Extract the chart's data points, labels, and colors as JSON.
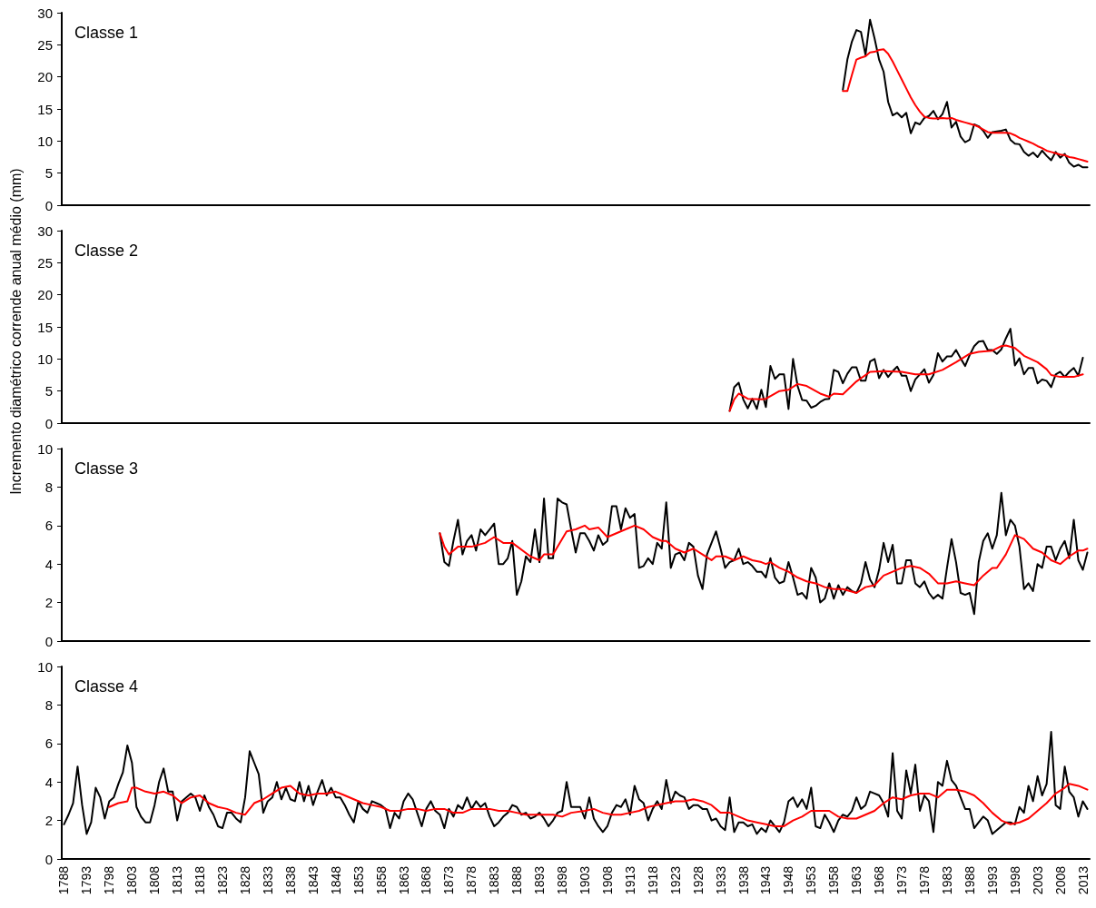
{
  "chart_data": [
    {
      "type": "line",
      "title": "Classe 1",
      "tick_labels": "y",
      "marker": "none",
      "xlim": [
        1787.5,
        2014.5
      ],
      "xticks": [
        1788,
        1793,
        1798,
        1803,
        1808,
        1813,
        1818,
        1823,
        1828,
        1833,
        1838,
        1843,
        1848,
        1853,
        1858,
        1863,
        1868,
        1873,
        1878,
        1883,
        1888,
        1893,
        1898,
        1903,
        1908,
        1913,
        1918,
        1923,
        1928,
        1933,
        1938,
        1943,
        1948,
        1953,
        1958,
        1963,
        1968,
        1973,
        1978,
        1983,
        1988,
        1993,
        1998,
        2003,
        2008,
        2013
      ],
      "ylim": [
        0,
        30
      ],
      "yticks": [
        0,
        5,
        10,
        15,
        20,
        25,
        30
      ],
      "series": [
        {
          "color": "#000000",
          "x": [
            1960,
            1961,
            1962,
            1963,
            1964,
            1965,
            1966,
            1967,
            1968,
            1969,
            1970,
            1971,
            1972,
            1973,
            1974,
            1975,
            1976,
            1977,
            1978,
            1979,
            1980,
            1981,
            1982,
            1983,
            1984,
            1985,
            1986,
            1987,
            1988,
            1989,
            1990,
            1991,
            1992,
            1993,
            1994,
            1995,
            1996,
            1997,
            1998,
            1999,
            2000,
            2001,
            2002,
            2003,
            2004,
            2005,
            2006,
            2007,
            2008,
            2009,
            2010,
            2011,
            2012,
            2013,
            2014
          ],
          "values": [
            18.0,
            22.7,
            25.5,
            27.3,
            27.0,
            23.4,
            28.9,
            26.0,
            22.7,
            20.8,
            16.1,
            14.0,
            14.4,
            13.7,
            14.4,
            11.2,
            12.9,
            12.6,
            13.6,
            13.9,
            14.7,
            13.4,
            14.2,
            16.1,
            12.1,
            13.0,
            10.7,
            9.8,
            10.2,
            12.6,
            12.3,
            11.6,
            10.5,
            11.4,
            11.5,
            11.6,
            11.8,
            10.2,
            9.6,
            9.5,
            8.3,
            7.7,
            8.2,
            7.5,
            8.5,
            7.7,
            7.0,
            8.3,
            7.4,
            8.0,
            6.6,
            6.0,
            6.3,
            5.9,
            5.9
          ]
        },
        {
          "color": "#ff0000",
          "x": [
            1960,
            1961,
            1962,
            1963,
            1964,
            1965,
            1966,
            1967,
            1968,
            1969,
            1970,
            1971,
            1972,
            1973,
            1974,
            1975,
            1976,
            1977,
            1978,
            1979,
            1980,
            1981,
            1982,
            1983,
            1984,
            1985,
            1986,
            1987,
            1988,
            1989,
            1990,
            1991,
            1992,
            1993,
            1994,
            1995,
            1996,
            1997,
            1998,
            1999,
            2000,
            2001,
            2002,
            2003,
            2004,
            2005,
            2006,
            2007,
            2008,
            2009,
            2010,
            2011,
            2012,
            2013,
            2014
          ],
          "values": [
            17.8,
            17.8,
            20.3,
            22.7,
            23.0,
            23.2,
            23.8,
            23.9,
            24.2,
            24.3,
            23.6,
            22.4,
            21.0,
            19.6,
            18.2,
            16.8,
            15.6,
            14.6,
            13.8,
            13.6,
            13.5,
            13.5,
            13.6,
            13.5,
            13.6,
            13.3,
            13.1,
            12.9,
            12.7,
            12.5,
            12.2,
            11.8,
            11.4,
            11.3,
            11.3,
            11.3,
            11.3,
            11.2,
            10.9,
            10.5,
            10.2,
            9.9,
            9.6,
            9.2,
            8.9,
            8.5,
            8.3,
            8.1,
            7.9,
            7.8,
            7.5,
            7.4,
            7.2,
            7.0,
            6.8
          ]
        }
      ]
    },
    {
      "type": "line",
      "title": "Classe 2",
      "ylabel": "Incremento diamétrico corrende anual médio (mm)",
      "tick_labels": "y",
      "marker": "none",
      "xlim": [
        1787.5,
        2014.5
      ],
      "xticks": [
        1788,
        1793,
        1798,
        1803,
        1808,
        1813,
        1818,
        1823,
        1828,
        1833,
        1838,
        1843,
        1848,
        1853,
        1858,
        1863,
        1868,
        1873,
        1878,
        1883,
        1888,
        1893,
        1898,
        1903,
        1908,
        1913,
        1918,
        1923,
        1928,
        1933,
        1938,
        1943,
        1948,
        1953,
        1958,
        1963,
        1968,
        1973,
        1978,
        1983,
        1988,
        1993,
        1998,
        2003,
        2008,
        2013
      ],
      "ylim": [
        0,
        30
      ],
      "yticks": [
        0,
        5,
        10,
        15,
        20,
        25,
        30
      ],
      "series": [
        {
          "color": "#000000",
          "x": [
            1935,
            1936,
            1937,
            1938,
            1939,
            1940,
            1941,
            1942,
            1943,
            1944,
            1945,
            1946,
            1947,
            1948,
            1949,
            1950,
            1951,
            1952,
            1953,
            1954,
            1955,
            1956,
            1957,
            1958,
            1959,
            1960,
            1961,
            1962,
            1963,
            1964,
            1965,
            1966,
            1967,
            1968,
            1969,
            1970,
            1971,
            1972,
            1973,
            1974,
            1975,
            1976,
            1977,
            1978,
            1979,
            1980,
            1981,
            1982,
            1983,
            1984,
            1985,
            1986,
            1987,
            1988,
            1989,
            1990,
            1991,
            1992,
            1993,
            1994,
            1995,
            1996,
            1997,
            1998,
            1999,
            2000,
            2001,
            2002,
            2003,
            2004,
            2005,
            2006,
            2007,
            2008,
            2009,
            2010,
            2011,
            2012,
            2013
          ],
          "values": [
            1.9,
            5.6,
            6.3,
            3.7,
            2.3,
            3.8,
            2.2,
            5.2,
            2.5,
            8.9,
            6.9,
            7.6,
            7.6,
            2.2,
            10.0,
            5.8,
            3.6,
            3.5,
            2.4,
            2.7,
            3.3,
            3.7,
            3.8,
            8.3,
            8.0,
            6.2,
            7.7,
            8.7,
            8.7,
            6.6,
            6.6,
            9.6,
            10.0,
            7.0,
            8.3,
            7.2,
            8.1,
            8.8,
            7.4,
            7.4,
            5.0,
            6.8,
            7.6,
            8.4,
            6.3,
            7.5,
            10.9,
            9.6,
            10.4,
            10.4,
            11.4,
            10.1,
            8.9,
            10.6,
            12.0,
            12.7,
            12.8,
            11.4,
            11.4,
            10.8,
            11.5,
            13.2,
            14.7,
            9.0,
            10.1,
            7.6,
            8.6,
            8.6,
            6.2,
            6.8,
            6.6,
            5.6,
            7.6,
            8.0,
            7.2,
            8.0,
            8.6,
            7.4,
            10.2
          ]
        },
        {
          "color": "#ff0000",
          "x": [
            1935,
            1936,
            1937,
            1939,
            1942,
            1943,
            1946,
            1948,
            1950,
            1952,
            1955,
            1957,
            1958,
            1960,
            1963,
            1966,
            1969,
            1973,
            1976,
            1979,
            1982,
            1985,
            1988,
            1990,
            1993,
            1995,
            1996,
            1998,
            2000,
            2003,
            2005,
            2006,
            2008,
            2011,
            2013
          ],
          "values": [
            1.9,
            3.7,
            4.6,
            3.8,
            3.7,
            3.8,
            5.0,
            5.2,
            6.1,
            5.8,
            4.6,
            4.1,
            4.6,
            4.5,
            6.5,
            8.0,
            8.1,
            8.0,
            7.6,
            7.6,
            8.3,
            9.5,
            10.8,
            11.1,
            11.3,
            12.0,
            12.1,
            11.7,
            10.5,
            9.5,
            8.4,
            7.5,
            7.2,
            7.2,
            7.6
          ]
        }
      ]
    },
    {
      "type": "line",
      "title": "Classe 3",
      "tick_labels": "y",
      "marker": "none",
      "xlim": [
        1787.5,
        2014.5
      ],
      "xticks": [
        1788,
        1793,
        1798,
        1803,
        1808,
        1813,
        1818,
        1823,
        1828,
        1833,
        1838,
        1843,
        1848,
        1853,
        1858,
        1863,
        1868,
        1873,
        1878,
        1883,
        1888,
        1893,
        1898,
        1903,
        1908,
        1913,
        1918,
        1923,
        1928,
        1933,
        1938,
        1943,
        1948,
        1953,
        1958,
        1963,
        1968,
        1973,
        1978,
        1983,
        1988,
        1993,
        1998,
        2003,
        2008,
        2013
      ],
      "ylim": [
        0,
        10
      ],
      "yticks": [
        0,
        2,
        4,
        6,
        8,
        10
      ],
      "series": [
        {
          "color": "#000000",
          "x": [
            1871,
            1872,
            1873,
            1874,
            1875,
            1876,
            1877,
            1878,
            1879,
            1880,
            1881,
            1882,
            1883,
            1884,
            1885,
            1886,
            1887,
            1888,
            1889,
            1890,
            1891,
            1892,
            1893,
            1894,
            1895,
            1896,
            1897,
            1898,
            1899,
            1900,
            1901,
            1902,
            1903,
            1904,
            1905,
            1906,
            1907,
            1908,
            1909,
            1910,
            1911,
            1912,
            1913,
            1914,
            1915,
            1916,
            1917,
            1918,
            1919,
            1920,
            1921,
            1922,
            1923,
            1924,
            1925,
            1926,
            1927,
            1928,
            1929,
            1930,
            1931,
            1932,
            1933,
            1934,
            1935,
            1936,
            1937,
            1938,
            1939,
            1940,
            1941,
            1942,
            1943,
            1944,
            1945,
            1946,
            1947,
            1948,
            1949,
            1950,
            1951,
            1952,
            1953,
            1954,
            1955,
            1956,
            1957,
            1958,
            1959,
            1960,
            1961,
            1962,
            1963,
            1964,
            1965,
            1966,
            1967,
            1968,
            1969,
            1970,
            1971,
            1972,
            1973,
            1974,
            1975,
            1976,
            1977,
            1978,
            1979,
            1980,
            1981,
            1982,
            1983,
            1984,
            1985,
            1986,
            1987,
            1988,
            1989,
            1990,
            1991,
            1992,
            1993,
            1994,
            1995,
            1996,
            1997,
            1998,
            1999,
            2000,
            2001,
            2002,
            2003,
            2004,
            2005,
            2006,
            2007,
            2008,
            2009,
            2010,
            2011,
            2012,
            2013,
            2014
          ],
          "values": [
            5.6,
            4.1,
            3.9,
            5.2,
            6.3,
            4.5,
            5.2,
            5.5,
            4.7,
            5.8,
            5.5,
            5.8,
            6.1,
            4.0,
            4.0,
            4.3,
            5.2,
            2.4,
            3.1,
            4.4,
            4.1,
            5.8,
            4.1,
            7.4,
            4.3,
            4.3,
            7.4,
            7.2,
            7.1,
            5.8,
            4.6,
            5.6,
            5.6,
            5.2,
            4.7,
            5.5,
            5.0,
            5.2,
            7.0,
            7.0,
            5.8,
            6.9,
            6.4,
            6.6,
            3.8,
            3.9,
            4.3,
            4.0,
            5.1,
            4.8,
            7.2,
            3.8,
            4.5,
            4.6,
            4.2,
            5.1,
            4.9,
            3.4,
            2.7,
            4.5,
            5.1,
            5.7,
            4.8,
            3.8,
            4.1,
            4.2,
            4.8,
            4.0,
            4.1,
            3.9,
            3.6,
            3.6,
            3.3,
            4.3,
            3.3,
            3.0,
            3.1,
            4.1,
            3.3,
            2.4,
            2.5,
            2.2,
            3.8,
            3.3,
            2.0,
            2.2,
            3.0,
            2.2,
            2.9,
            2.4,
            2.8,
            2.6,
            2.5,
            3.0,
            4.1,
            3.2,
            2.8,
            3.7,
            5.1,
            4.1,
            5.0,
            3.0,
            3.0,
            4.2,
            4.2,
            3.0,
            2.8,
            3.1,
            2.5,
            2.2,
            2.4,
            2.2,
            3.8,
            5.3,
            4.1,
            2.5,
            2.4,
            2.5,
            1.4,
            4.1,
            5.2,
            5.6,
            4.8,
            5.5,
            7.7,
            5.5,
            6.3,
            6.0,
            4.9,
            2.7,
            3.0,
            2.6,
            4.0,
            3.8,
            4.9,
            4.9,
            4.2,
            4.8,
            5.2,
            4.3,
            6.3,
            4.2,
            3.7,
            4.6
          ]
        },
        {
          "color": "#ff0000",
          "x": [
            1871,
            1872,
            1873,
            1875,
            1878,
            1881,
            1883,
            1885,
            1887,
            1891,
            1893,
            1894,
            1896,
            1899,
            1901,
            1903,
            1904,
            1906,
            1908,
            1910,
            1912,
            1914,
            1916,
            1918,
            1920,
            1921,
            1923,
            1925,
            1927,
            1929,
            1931,
            1932,
            1934,
            1936,
            1938,
            1940,
            1942,
            1943,
            1944,
            1946,
            1948,
            1950,
            1952,
            1954,
            1956,
            1958,
            1960,
            1963,
            1965,
            1967,
            1969,
            1971,
            1973,
            1975,
            1977,
            1979,
            1981,
            1983,
            1985,
            1987,
            1989,
            1991,
            1993,
            1994,
            1996,
            1998,
            2000,
            2002,
            2004,
            2006,
            2008,
            2010,
            2012,
            2013,
            2014
          ],
          "values": [
            5.6,
            4.9,
            4.5,
            4.9,
            4.9,
            5.1,
            5.4,
            5.1,
            5.1,
            4.4,
            4.2,
            4.5,
            4.5,
            5.7,
            5.8,
            6.0,
            5.8,
            5.9,
            5.4,
            5.6,
            5.8,
            6.0,
            5.8,
            5.4,
            5.2,
            5.2,
            4.8,
            4.6,
            4.8,
            4.5,
            4.2,
            4.4,
            4.4,
            4.2,
            4.4,
            4.2,
            4.1,
            4.0,
            4.1,
            3.8,
            3.6,
            3.3,
            3.1,
            3.0,
            2.8,
            2.7,
            2.7,
            2.5,
            2.8,
            2.9,
            3.4,
            3.6,
            3.8,
            3.9,
            3.8,
            3.5,
            3.0,
            3.0,
            3.1,
            3.0,
            2.9,
            3.4,
            3.8,
            3.8,
            4.5,
            5.5,
            5.3,
            4.8,
            4.6,
            4.2,
            4.0,
            4.4,
            4.7,
            4.7,
            4.8
          ]
        }
      ]
    },
    {
      "type": "line",
      "title": "Classe 4",
      "marker": "none",
      "xlim": [
        1787.5,
        2014.5
      ],
      "xticks": [
        1788,
        1793,
        1798,
        1803,
        1808,
        1813,
        1818,
        1823,
        1828,
        1833,
        1838,
        1843,
        1848,
        1853,
        1858,
        1863,
        1868,
        1873,
        1878,
        1883,
        1888,
        1893,
        1898,
        1903,
        1908,
        1913,
        1918,
        1923,
        1928,
        1933,
        1938,
        1943,
        1948,
        1953,
        1958,
        1963,
        1968,
        1973,
        1978,
        1983,
        1988,
        1993,
        1998,
        2003,
        2008,
        2013
      ],
      "ylim": [
        0,
        10
      ],
      "yticks": [
        0,
        2,
        4,
        6,
        8,
        10
      ],
      "series": [
        {
          "color": "#000000",
          "x": [
            1788,
            1789,
            1790,
            1791,
            1792,
            1793,
            1794,
            1795,
            1796,
            1797,
            1798,
            1799,
            1800,
            1801,
            1802,
            1803,
            1804,
            1805,
            1806,
            1807,
            1808,
            1809,
            1810,
            1811,
            1812,
            1813,
            1814,
            1815,
            1816,
            1817,
            1818,
            1819,
            1820,
            1821,
            1822,
            1823,
            1824,
            1825,
            1826,
            1827,
            1828,
            1829,
            1830,
            1831,
            1832,
            1833,
            1834,
            1835,
            1836,
            1837,
            1838,
            1839,
            1840,
            1841,
            1842,
            1843,
            1844,
            1845,
            1846,
            1847,
            1848,
            1849,
            1850,
            1851,
            1852,
            1853,
            1854,
            1855,
            1856,
            1857,
            1858,
            1859,
            1860,
            1861,
            1862,
            1863,
            1864,
            1865,
            1866,
            1867,
            1868,
            1869,
            1870,
            1871,
            1872,
            1873,
            1874,
            1875,
            1876,
            1877,
            1878,
            1879,
            1880,
            1881,
            1882,
            1883,
            1884,
            1885,
            1886,
            1887,
            1888,
            1889,
            1890,
            1891,
            1892,
            1893,
            1894,
            1895,
            1896,
            1897,
            1898,
            1899,
            1900,
            1901,
            1902,
            1903,
            1904,
            1905,
            1906,
            1907,
            1908,
            1909,
            1910,
            1911,
            1912,
            1913,
            1914,
            1915,
            1916,
            1917,
            1918,
            1919,
            1920,
            1921,
            1922,
            1923,
            1924,
            1925,
            1926,
            1927,
            1928,
            1929,
            1930,
            1931,
            1932,
            1933,
            1934,
            1935,
            1936,
            1937,
            1938,
            1939,
            1940,
            1941,
            1942,
            1943,
            1944,
            1945,
            1946,
            1947,
            1948,
            1949,
            1950,
            1951,
            1952,
            1953,
            1954,
            1955,
            1956,
            1957,
            1958,
            1959,
            1960,
            1961,
            1962,
            1963,
            1964,
            1965,
            1966,
            1967,
            1968,
            1969,
            1970,
            1971,
            1972,
            1973,
            1974,
            1975,
            1976,
            1977,
            1978,
            1979,
            1980,
            1981,
            1982,
            1983,
            1984,
            1985,
            1986,
            1987,
            1988,
            1989,
            1990,
            1991,
            1992,
            1993,
            1994,
            1995,
            1996,
            1997,
            1998,
            1999,
            2000,
            2001,
            2002,
            2003,
            2004,
            2005,
            2006,
            2007,
            2008,
            2009,
            2010,
            2011,
            2012,
            2013,
            2014
          ],
          "values": [
            1.8,
            2.3,
            2.9,
            4.8,
            2.8,
            1.3,
            1.9,
            3.7,
            3.2,
            2.1,
            3.0,
            3.2,
            3.9,
            4.5,
            5.9,
            5.0,
            2.7,
            2.2,
            1.9,
            1.9,
            2.8,
            4.0,
            4.7,
            3.5,
            3.5,
            2.0,
            3.0,
            3.2,
            3.4,
            3.2,
            2.5,
            3.3,
            2.7,
            2.3,
            1.7,
            1.6,
            2.4,
            2.4,
            2.1,
            1.9,
            3.2,
            5.6,
            5.0,
            4.4,
            2.4,
            3.0,
            3.2,
            4.0,
            3.1,
            3.7,
            3.1,
            3.0,
            4.0,
            3.0,
            3.8,
            2.8,
            3.5,
            4.1,
            3.3,
            3.7,
            3.2,
            3.2,
            2.8,
            2.3,
            1.9,
            3.0,
            2.6,
            2.4,
            3.0,
            2.9,
            2.8,
            2.6,
            1.6,
            2.4,
            2.1,
            3.0,
            3.4,
            3.1,
            2.4,
            1.7,
            2.6,
            3.0,
            2.5,
            2.3,
            1.6,
            2.6,
            2.2,
            2.8,
            2.6,
            3.2,
            2.6,
            3.0,
            2.7,
            2.9,
            2.2,
            1.7,
            1.9,
            2.2,
            2.4,
            2.8,
            2.7,
            2.3,
            2.4,
            2.1,
            2.2,
            2.4,
            2.1,
            1.7,
            2.0,
            2.4,
            2.5,
            4.0,
            2.7,
            2.7,
            2.7,
            2.1,
            3.2,
            2.1,
            1.7,
            1.4,
            1.7,
            2.4,
            2.8,
            2.7,
            3.1,
            2.3,
            3.8,
            3.1,
            2.9,
            2.0,
            2.6,
            3.0,
            2.6,
            4.1,
            2.9,
            3.5,
            3.3,
            3.2,
            2.6,
            2.8,
            2.8,
            2.6,
            2.6,
            2.0,
            2.1,
            1.7,
            1.5,
            3.2,
            1.4,
            1.9,
            1.9,
            1.7,
            1.8,
            1.3,
            1.6,
            1.4,
            2.0,
            1.7,
            1.4,
            1.9,
            3.0,
            3.2,
            2.7,
            3.1,
            2.6,
            3.7,
            1.7,
            1.6,
            2.3,
            1.9,
            1.4,
            2.0,
            2.3,
            2.2,
            2.5,
            3.2,
            2.6,
            2.8,
            3.5,
            3.4,
            3.3,
            2.9,
            2.2,
            5.5,
            2.5,
            2.1,
            4.6,
            3.4,
            4.9,
            2.5,
            3.3,
            3.0,
            1.4,
            4.0,
            3.8,
            5.1,
            4.1,
            3.8,
            3.2,
            2.6,
            2.6,
            1.6,
            1.9,
            2.2,
            2.0,
            1.3,
            1.5,
            1.7,
            1.9,
            1.9,
            1.8,
            2.7,
            2.4,
            3.8,
            3.0,
            4.3,
            3.3,
            3.9,
            6.6,
            2.8,
            2.6,
            4.8,
            3.5,
            3.2,
            2.2,
            3.0,
            2.6
          ]
        },
        {
          "color": "#ff0000",
          "x": [
            1798,
            1800,
            1802,
            1803,
            1804,
            1806,
            1808,
            1810,
            1812,
            1814,
            1816,
            1818,
            1820,
            1822,
            1824,
            1826,
            1828,
            1830,
            1832,
            1834,
            1836,
            1838,
            1840,
            1842,
            1844,
            1846,
            1848,
            1850,
            1852,
            1854,
            1856,
            1858,
            1860,
            1862,
            1864,
            1866,
            1868,
            1870,
            1872,
            1874,
            1876,
            1878,
            1880,
            1882,
            1884,
            1886,
            1888,
            1890,
            1892,
            1894,
            1896,
            1898,
            1900,
            1903,
            1905,
            1907,
            1909,
            1911,
            1913,
            1915,
            1917,
            1919,
            1921,
            1923,
            1925,
            1927,
            1929,
            1931,
            1933,
            1935,
            1937,
            1939,
            1941,
            1943,
            1945,
            1947,
            1949,
            1951,
            1953,
            1955,
            1957,
            1959,
            1961,
            1963,
            1965,
            1967,
            1969,
            1971,
            1973,
            1975,
            1977,
            1979,
            1981,
            1983,
            1985,
            1987,
            1989,
            1991,
            1993,
            1995,
            1997,
            1999,
            2001,
            2003,
            2005,
            2007,
            2009,
            2010,
            2012,
            2014
          ],
          "values": [
            2.7,
            2.9,
            3.0,
            3.7,
            3.7,
            3.5,
            3.4,
            3.5,
            3.3,
            2.9,
            3.2,
            3.3,
            2.9,
            2.7,
            2.6,
            2.4,
            2.3,
            2.9,
            3.1,
            3.4,
            3.7,
            3.8,
            3.4,
            3.3,
            3.4,
            3.4,
            3.5,
            3.3,
            3.1,
            2.9,
            2.8,
            2.7,
            2.5,
            2.5,
            2.6,
            2.6,
            2.5,
            2.6,
            2.6,
            2.4,
            2.4,
            2.6,
            2.6,
            2.6,
            2.5,
            2.5,
            2.4,
            2.3,
            2.3,
            2.3,
            2.3,
            2.2,
            2.4,
            2.5,
            2.6,
            2.4,
            2.3,
            2.3,
            2.4,
            2.5,
            2.7,
            2.8,
            2.9,
            3.0,
            3.0,
            3.1,
            3.0,
            2.8,
            2.4,
            2.4,
            2.2,
            2.0,
            1.9,
            1.8,
            1.7,
            1.7,
            2.0,
            2.2,
            2.5,
            2.5,
            2.5,
            2.2,
            2.1,
            2.1,
            2.3,
            2.5,
            2.9,
            3.2,
            3.1,
            3.3,
            3.4,
            3.4,
            3.2,
            3.6,
            3.6,
            3.5,
            3.3,
            2.9,
            2.4,
            2.0,
            1.8,
            1.9,
            2.1,
            2.5,
            2.9,
            3.4,
            3.7,
            3.9,
            3.8,
            3.6
          ]
        }
      ]
    }
  ]
}
